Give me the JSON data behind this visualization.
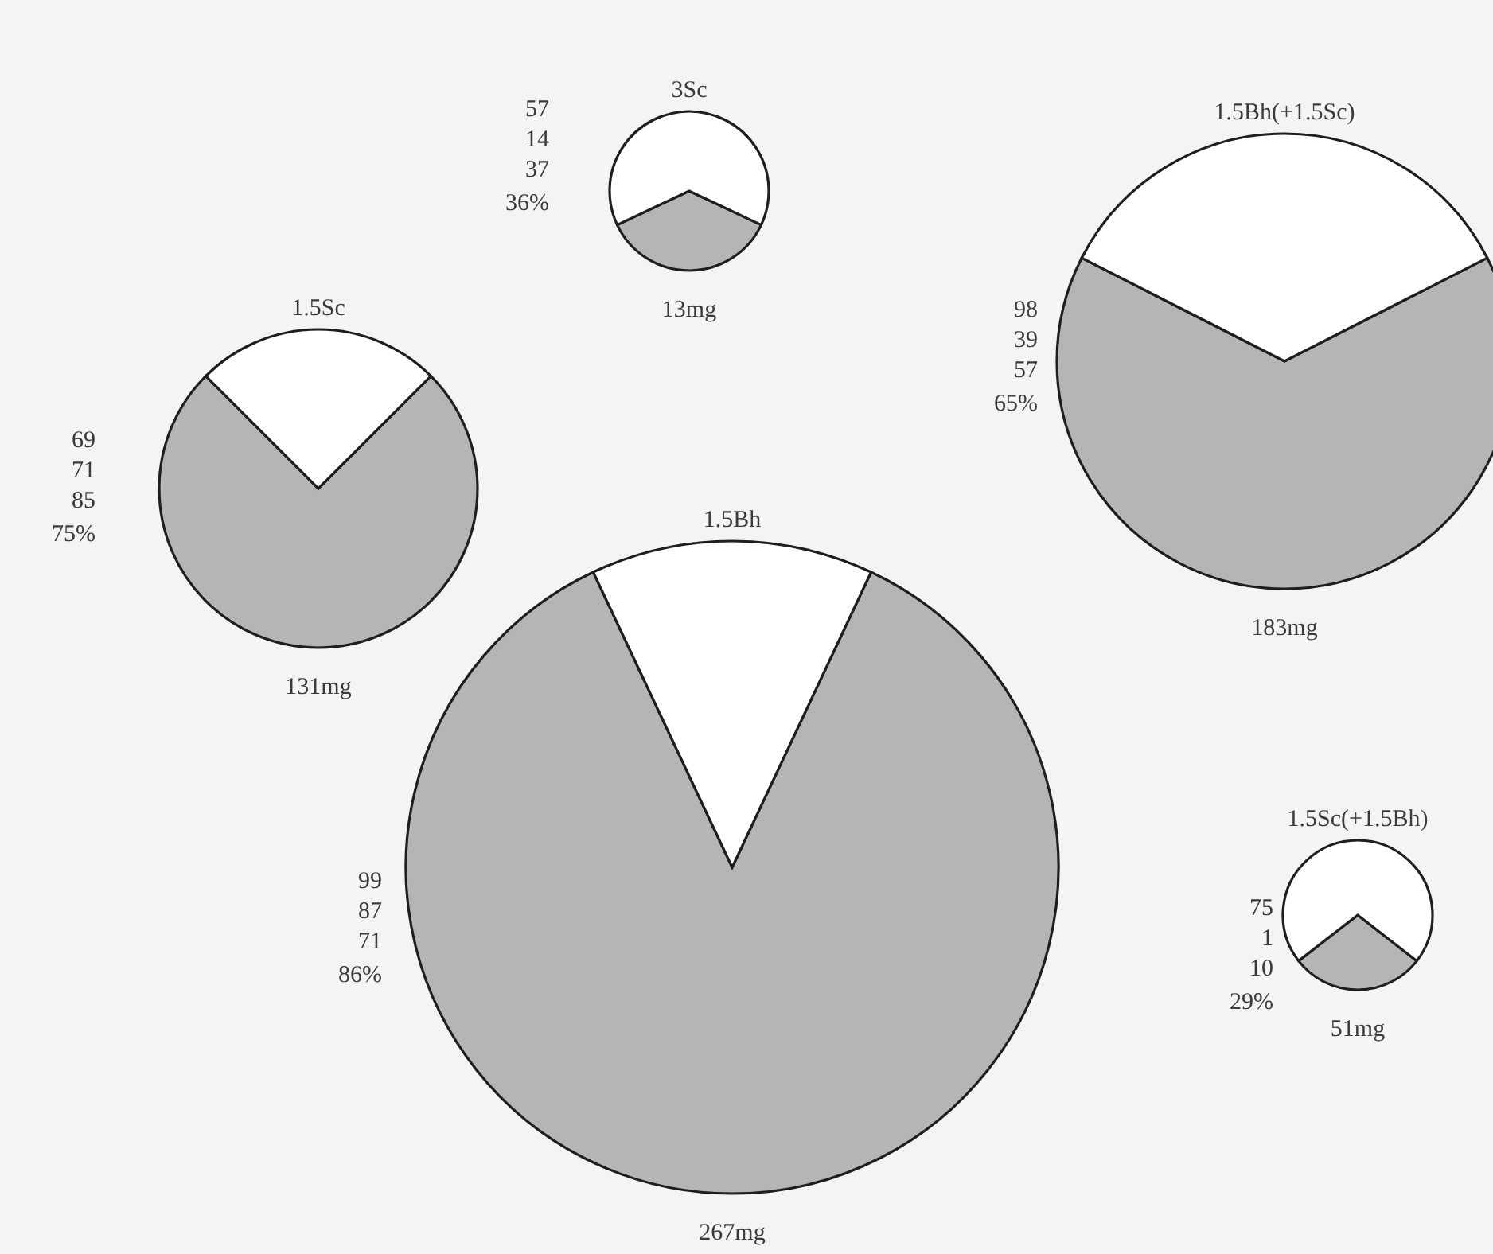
{
  "chart_data": [
    {
      "type": "pie",
      "title": "3Sc",
      "categories": [
        null,
        null
      ],
      "values": [
        36,
        64
      ],
      "colors": [
        "#b5b5b5",
        "#ffffff"
      ],
      "annotations": [
        "57",
        "14",
        "37",
        "36%",
        "13mg"
      ]
    },
    {
      "type": "pie",
      "title": "1.5Bh(+1.5Sc)",
      "categories": [
        null,
        null
      ],
      "values": [
        65,
        35
      ],
      "colors": [
        "#b5b5b5",
        "#ffffff"
      ],
      "annotations": [
        "98",
        "39",
        "57",
        "65%",
        "183mg"
      ]
    },
    {
      "type": "pie",
      "title": "1.5Sc",
      "categories": [
        null,
        null
      ],
      "values": [
        75,
        25
      ],
      "colors": [
        "#b5b5b5",
        "#ffffff"
      ],
      "annotations": [
        "69",
        "71",
        "85",
        "75%",
        "131mg"
      ]
    },
    {
      "type": "pie",
      "title": "1.5Bh",
      "categories": [
        null,
        null
      ],
      "values": [
        86,
        14
      ],
      "colors": [
        "#b5b5b5",
        "#ffffff"
      ],
      "annotations": [
        "99",
        "87",
        "71",
        "86%",
        "267mg"
      ]
    },
    {
      "type": "pie",
      "title": "1.5Sc(+1.5Bh)",
      "categories": [
        null,
        null
      ],
      "values": [
        29,
        71
      ],
      "colors": [
        "#b5b5b5",
        "#ffffff"
      ],
      "annotations": [
        "75",
        "1",
        "10",
        "29%",
        "51mg"
      ]
    }
  ]
}
